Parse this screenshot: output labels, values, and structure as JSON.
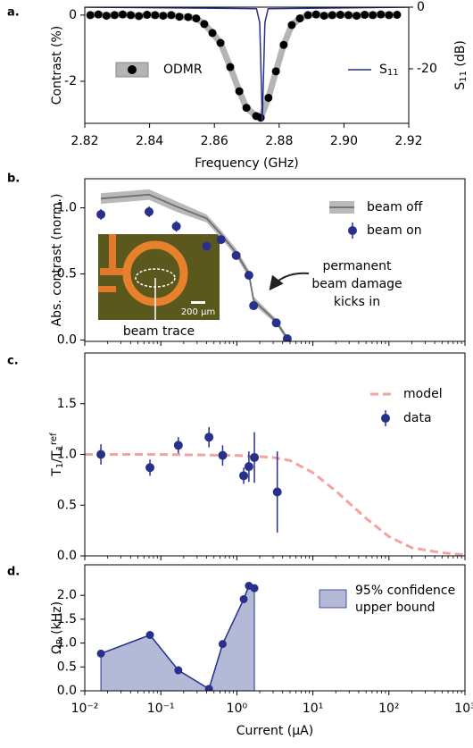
{
  "chart_data": [
    {
      "panel_label": "a.",
      "type": "line",
      "xlabel": "Frequency (GHz)",
      "ylabel": "Contrast (%)",
      "y2label": [
        {
          "t": "S"
        },
        {
          "sub": "11"
        },
        {
          "t": " (dB)"
        }
      ],
      "xlim": [
        2.82,
        2.92
      ],
      "xticks": [
        2.82,
        2.84,
        2.86,
        2.88,
        {
          "value": 2.9,
          "label": "2.90"
        },
        2.92
      ],
      "ylim": [
        -3.27,
        0.24
      ],
      "yticks": [
        0,
        -2
      ],
      "y2lim": [
        -37.7,
        0
      ],
      "y2ticks": [
        0,
        -20
      ],
      "series": [
        {
          "name": "ODMR",
          "style": "markers-line",
          "color": "#000000",
          "band_color": "#b4b4b4",
          "x": [
            2.8217,
            2.8242,
            2.8267,
            2.8292,
            2.8317,
            2.8342,
            2.8367,
            2.8392,
            2.8417,
            2.8442,
            2.8467,
            2.8492,
            2.8519,
            2.8544,
            2.8569,
            2.8594,
            2.8619,
            2.8649,
            2.8677,
            2.8699,
            2.8729,
            2.8743,
            2.8767,
            2.879,
            2.8814,
            2.8839,
            2.8864,
            2.8889,
            2.8914,
            2.8939,
            2.8964,
            2.8989,
            2.9014,
            2.9039,
            2.9064,
            2.9089,
            2.9114,
            2.9139,
            2.9164
          ],
          "values": [
            0,
            0.02,
            -0.02,
            0,
            0.02,
            0,
            -0.03,
            0.01,
            0,
            -0.02,
            0,
            -0.05,
            -0.06,
            -0.1,
            -0.27,
            -0.54,
            -0.84,
            -1.57,
            -2.3,
            -2.8,
            -3.05,
            -3.1,
            -2.5,
            -1.7,
            -0.9,
            -0.3,
            -0.1,
            0,
            0.02,
            -0.02,
            0,
            0.01,
            0,
            -0.02,
            0.01,
            0,
            0.02,
            0,
            0.01
          ]
        },
        {
          "name": [
            {
              "t": "S"
            },
            {
              "sub": "11"
            }
          ],
          "style": "line",
          "axis": "y2",
          "color": "#27318b",
          "x": [
            2.82,
            2.873,
            2.874,
            2.8748,
            2.8756,
            2.8766,
            2.92
          ],
          "values": [
            0,
            -0.5,
            -5,
            -37,
            -5,
            -0.5,
            0
          ]
        }
      ]
    },
    {
      "panel_label": "b.",
      "type": "errorbar",
      "ylabel": "Abs. contrast (norm.)",
      "log_x": true,
      "xlim": [
        0.01,
        1000
      ],
      "ylim": [
        -0.01,
        1.22
      ],
      "yticks": [
        {
          "value": 0,
          "label": "0.0"
        },
        0.5,
        {
          "value": 1,
          "label": "1.0"
        }
      ],
      "annotation": [
        "permanent",
        "beam damage",
        "kicks in"
      ],
      "inset_scale": "200 µm",
      "inset_label": "beam trace",
      "series": [
        {
          "name": "beam off",
          "style": "band-line",
          "color": "#6e6e6e",
          "band_color": "#b9b9b9",
          "x": [
            0.0163,
            0.07,
            0.16,
            0.4,
            0.62,
            0.98,
            1.44,
            1.66,
            3.3,
            4.6
          ],
          "values": [
            1.07,
            1.1,
            1.01,
            0.92,
            0.8,
            0.66,
            0.5,
            0.3,
            0.14,
            0.01
          ],
          "errors": [
            0.04,
            0.04,
            0.04,
            0.03,
            0.03,
            0.03,
            0.03,
            0.03,
            0.02,
            0.02
          ]
        },
        {
          "name": "beam on",
          "style": "errorbar",
          "color": "#27318b",
          "x": [
            0.0163,
            0.07,
            0.16,
            0.4,
            0.62,
            0.98,
            1.44,
            1.66,
            3.3,
            4.6
          ],
          "values": [
            0.95,
            0.97,
            0.86,
            0.71,
            0.76,
            0.64,
            0.49,
            0.26,
            0.13,
            0.01
          ],
          "errors": [
            0.04,
            0.04,
            0.04,
            0.03,
            0.03,
            0.03,
            0.03,
            0.03,
            0.03,
            0.02
          ]
        }
      ]
    },
    {
      "panel_label": "c.",
      "type": "errorbar",
      "log_x": true,
      "ylabel": [
        {
          "t": "T"
        },
        {
          "sub": "1"
        },
        {
          "t": "/T"
        },
        {
          "sub": "1"
        },
        {
          "sup": "ref"
        }
      ],
      "xlim": [
        0.01,
        1000
      ],
      "ylim": [
        0,
        2.0
      ],
      "yticks": [
        {
          "value": 0,
          "label": "0.0"
        },
        0.5,
        {
          "value": 1,
          "label": "1.0"
        },
        1.5
      ],
      "series": [
        {
          "name": "model",
          "style": "dashed",
          "color": "#f4a3a3",
          "x": [
            0.01,
            0.1,
            1,
            3,
            5,
            10,
            20,
            30,
            50,
            100,
            200,
            500,
            1000
          ],
          "values": [
            1.0,
            1.0,
            0.99,
            0.97,
            0.94,
            0.82,
            0.64,
            0.52,
            0.37,
            0.19,
            0.08,
            0.03,
            0.01
          ]
        },
        {
          "name": "data",
          "style": "errorbar",
          "color": "#27318b",
          "x": [
            0.0163,
            0.072,
            0.17,
            0.43,
            0.65,
            1.23,
            1.44,
            1.7,
            3.4
          ],
          "values": [
            1.0,
            0.87,
            1.09,
            1.17,
            0.99,
            0.79,
            0.88,
            0.97,
            0.63
          ],
          "errors": [
            0.1,
            0.08,
            0.08,
            0.1,
            0.1,
            0.08,
            0.15,
            0.25,
            0.4
          ]
        }
      ]
    },
    {
      "panel_label": "d.",
      "type": "area",
      "log_x": true,
      "xlabel": "Current (µA)",
      "ylabel": [
        {
          "t": "Ω"
        },
        {
          "sub": "R"
        },
        {
          "t": " (kHz)"
        }
      ],
      "xlim": [
        0.01,
        1000
      ],
      "xticks": [
        {
          "value": 0.01,
          "label": "10⁻²"
        },
        {
          "value": 0.1,
          "label": "10⁻¹"
        },
        {
          "value": 1,
          "label": "10⁰"
        },
        {
          "value": 10,
          "label": "10¹"
        },
        {
          "value": 100,
          "label": "10²"
        },
        {
          "value": 1000,
          "label": "10³"
        }
      ],
      "ylim": [
        0,
        2.64
      ],
      "yticks": [
        {
          "value": 0,
          "label": "0.0"
        },
        0.5,
        {
          "value": 1,
          "label": "1.0"
        },
        1.5,
        {
          "value": 2,
          "label": "2.0"
        }
      ],
      "series": [
        {
          "name": [
            "95% confidence",
            "upper bound"
          ],
          "style": "area",
          "color": "#27318b",
          "band_color": "#b5b9d8",
          "x": [
            0.0163,
            0.072,
            0.17,
            0.43,
            0.65,
            1.23,
            1.44,
            1.7
          ],
          "values": [
            0.78,
            1.17,
            0.43,
            0.04,
            0.98,
            1.92,
            2.2,
            2.15
          ]
        }
      ]
    }
  ]
}
